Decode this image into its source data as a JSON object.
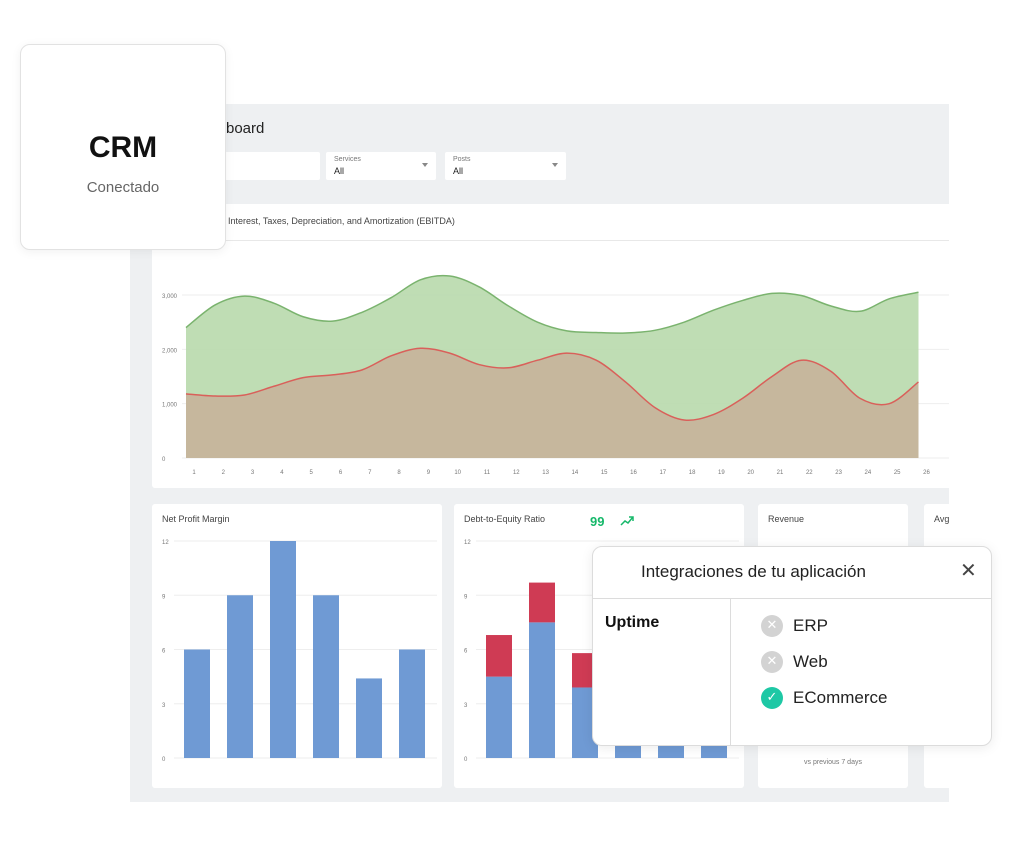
{
  "dashboard": {
    "title": "board",
    "filters": [
      {
        "label": "Services",
        "value": "All"
      },
      {
        "label": "Posts",
        "value": "All"
      }
    ]
  },
  "chart_data": [
    {
      "type": "area",
      "title": "Interest, Taxes, Depreciation, and Amortization (EBITDA)",
      "x": [
        1,
        2,
        3,
        4,
        5,
        6,
        7,
        8,
        9,
        10,
        11,
        12,
        13,
        14,
        15,
        16,
        17,
        18,
        19,
        20,
        21,
        22,
        23,
        24,
        25,
        26
      ],
      "ylim": [
        0,
        3000
      ],
      "yticks": [
        "0",
        "1,000",
        "2,000",
        "3,000"
      ],
      "series": [
        {
          "values": [
            2400,
            2820,
            2980,
            2850,
            2600,
            2520,
            2680,
            2950,
            3280,
            3350,
            3150,
            2800,
            2500,
            2340,
            2310,
            2300,
            2350,
            2500,
            2720,
            2900,
            3030,
            2990,
            2800,
            2700,
            2930,
            3050
          ],
          "color": "#7ab36e",
          "fill": "#b8d9ac"
        },
        {
          "values": [
            1180,
            1140,
            1160,
            1320,
            1480,
            1530,
            1620,
            1880,
            2020,
            1930,
            1720,
            1660,
            1800,
            1930,
            1800,
            1400,
            930,
            700,
            800,
            1100,
            1500,
            1800,
            1600,
            1100,
            1000,
            1400
          ],
          "color": "#d9605a",
          "fill": "#c7b39a"
        }
      ],
      "grid": true
    },
    {
      "type": "bar",
      "title": "Net Profit Margin",
      "categories": [
        "",
        "",
        "",
        "",
        "",
        ""
      ],
      "values": [
        6,
        9,
        12,
        9,
        4.4,
        6
      ],
      "ylim": [
        0,
        12
      ],
      "yticks": [
        "0",
        "3",
        "6",
        "9",
        "12"
      ],
      "color": "#6f9ad4"
    },
    {
      "type": "bar",
      "title": "Debt-to-Equity Ratio",
      "kpi": "99",
      "categories": [
        "",
        "",
        "",
        "",
        "",
        ""
      ],
      "stacked": true,
      "series": [
        {
          "values": [
            4.5,
            7.5,
            3.9,
            3,
            3,
            3
          ],
          "color": "#6f9ad4"
        },
        {
          "values": [
            2.3,
            2.2,
            1.9,
            0,
            0,
            0
          ],
          "color": "#cf3b54"
        }
      ],
      "ylim": [
        0,
        12
      ],
      "yticks": [
        "0",
        "3",
        "6",
        "9",
        "12"
      ]
    }
  ],
  "revenue_panel": {
    "title": "Revenue",
    "footer": "vs previous 7 days"
  },
  "avg_panel": {
    "title": "Avg"
  },
  "crm_card": {
    "title": "CRM",
    "status": "Conectado"
  },
  "integrations": {
    "title": "Integraciones de tu aplicación",
    "close_icon": "✕",
    "section_label": "Uptime",
    "items": [
      {
        "name": "ERP",
        "status": "disconnected",
        "icon": "x-circle-icon",
        "color": "#d3d3d3"
      },
      {
        "name": "Web",
        "status": "disconnected",
        "icon": "x-circle-icon",
        "color": "#d3d3d3"
      },
      {
        "name": "ECommerce",
        "status": "connected",
        "icon": "check-circle-icon",
        "color": "#1ec8a5"
      }
    ]
  },
  "colors": {
    "accent_green": "#1ec8a5",
    "kpi_green": "#16b86a"
  }
}
